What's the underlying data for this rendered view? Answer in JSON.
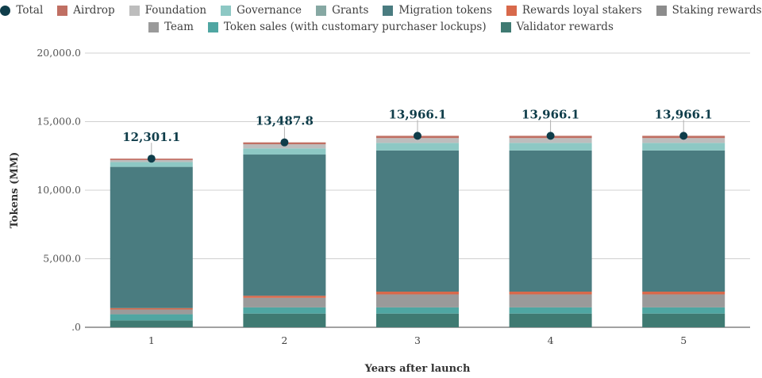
{
  "chart_data": {
    "type": "bar",
    "stacked": true,
    "xlabel": "Years after launch",
    "ylabel": "Tokens (MM)",
    "ylim": [
      0,
      20000
    ],
    "yticks": [
      ".0",
      "5,000.0",
      "10,000.0",
      "15,000.0",
      "20,000.0"
    ],
    "ytick_values": [
      0,
      5000,
      10000,
      15000,
      20000
    ],
    "categories": [
      "1",
      "2",
      "3",
      "4",
      "5"
    ],
    "grid": true,
    "legend_position": "top",
    "series": [
      {
        "name": "Validator rewards",
        "color": "#3f7a72",
        "values": [
          500,
          1000,
          1000,
          1000,
          1000
        ]
      },
      {
        "name": "Token sales (with customary purchaser lockups)",
        "color": "#4fa6a2",
        "values": [
          450,
          450,
          450,
          450,
          450
        ]
      },
      {
        "name": "Team",
        "color": "#9a9a9a",
        "values": [
          350,
          700,
          950,
          950,
          950
        ]
      },
      {
        "name": "Staking rewards",
        "color": "#8c8c8c",
        "values": [
          0,
          0,
          0,
          0,
          0
        ]
      },
      {
        "name": "Rewards loyal stakers",
        "color": "#d8694b",
        "values": [
          100,
          150,
          200,
          200,
          200
        ]
      },
      {
        "name": "Migration tokens",
        "color": "#4a7c80",
        "values": [
          10300,
          10300,
          10300,
          10300,
          10300
        ]
      },
      {
        "name": "Grants",
        "color": "#86a8a3",
        "values": [
          0,
          0,
          0,
          0,
          0
        ]
      },
      {
        "name": "Governance",
        "color": "#8dc8c4",
        "values": [
          350,
          450,
          550,
          550,
          550
        ]
      },
      {
        "name": "Foundation",
        "color": "#bdbdbd",
        "values": [
          150,
          300,
          350,
          350,
          350
        ]
      },
      {
        "name": "Airdrop",
        "color": "#c06f63",
        "values": [
          101.1,
          137.8,
          166.1,
          166.1,
          166.1
        ]
      }
    ],
    "total": {
      "name": "Total",
      "color": "#0f3d4a",
      "values": [
        12301.1,
        13487.8,
        13966.1,
        13966.1,
        13966.1
      ],
      "labels": [
        "12,301.1",
        "13,487.8",
        "13,966.1",
        "13,966.1",
        "13,966.1"
      ]
    }
  },
  "legend": {
    "row1": [
      {
        "name": "Total",
        "color": "#0f3d4a",
        "shape": "dot"
      },
      {
        "name": "Airdrop",
        "color": "#c06f63",
        "shape": "square"
      },
      {
        "name": "Foundation",
        "color": "#bdbdbd",
        "shape": "square"
      },
      {
        "name": "Governance",
        "color": "#8dc8c4",
        "shape": "square"
      },
      {
        "name": "Grants",
        "color": "#86a8a3",
        "shape": "square"
      },
      {
        "name": "Migration tokens",
        "color": "#4a7c80",
        "shape": "square"
      },
      {
        "name": "Rewards loyal stakers",
        "color": "#d8694b",
        "shape": "square"
      },
      {
        "name": "Staking rewards",
        "color": "#8c8c8c",
        "shape": "square"
      }
    ],
    "row2": [
      {
        "name": "Team",
        "color": "#9a9a9a",
        "shape": "square"
      },
      {
        "name": "Token sales (with customary purchaser lockups)",
        "color": "#4fa6a2",
        "shape": "square"
      },
      {
        "name": "Validator rewards",
        "color": "#3f7a72",
        "shape": "square"
      }
    ]
  }
}
